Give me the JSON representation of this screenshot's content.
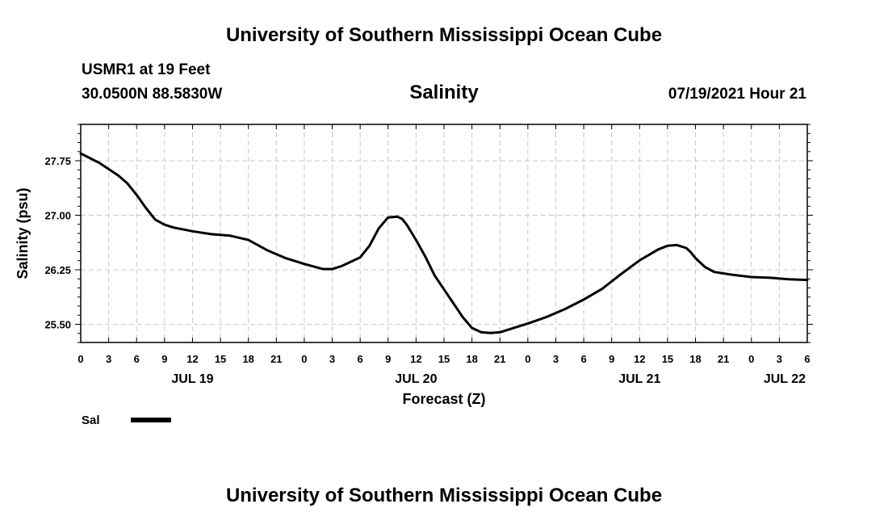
{
  "header": {
    "title": "University of Southern Mississippi Ocean Cube",
    "station": "USMR1 at 19 Feet",
    "coords": "30.0500N  88.5830W",
    "chart_title": "Salinity",
    "datetime": "07/19/2021 Hour 21"
  },
  "footer": {
    "title": "University of Southern Mississippi Ocean Cube"
  },
  "chart_data": {
    "type": "line",
    "title": "Salinity",
    "xlabel": "Forecast (Z)",
    "ylabel": "Salinity (psu)",
    "xlim": [
      0,
      78
    ],
    "ylim": [
      25.25,
      28.25
    ],
    "y_ticks": [
      25.5,
      26.25,
      27.0,
      27.75
    ],
    "y_tick_labels": [
      "25.50",
      "26.25",
      "27.00",
      "27.75"
    ],
    "x_ticks": [
      0,
      3,
      6,
      9,
      12,
      15,
      18,
      21,
      24,
      27,
      30,
      33,
      36,
      39,
      42,
      45,
      48,
      51,
      54,
      57,
      60,
      63,
      66,
      69,
      72,
      75,
      78
    ],
    "x_tick_labels": [
      "0",
      "3",
      "6",
      "9",
      "12",
      "15",
      "18",
      "21",
      "0",
      "3",
      "6",
      "9",
      "12",
      "15",
      "18",
      "21",
      "0",
      "3",
      "6",
      "9",
      "12",
      "15",
      "18",
      "21",
      "0",
      "3",
      "6"
    ],
    "date_labels": [
      {
        "hour": 12,
        "label": "JUL 19"
      },
      {
        "hour": 36,
        "label": "JUL 20"
      },
      {
        "hour": 60,
        "label": "JUL 21"
      },
      {
        "hour": 78,
        "label": "JUL 22"
      }
    ],
    "grid": true,
    "series": [
      {
        "name": "Sal",
        "color": "#000000",
        "x": [
          0,
          2,
          4,
          5,
          6,
          7,
          8,
          9,
          10,
          12,
          14,
          16,
          18,
          20,
          22,
          24,
          26,
          27,
          28,
          30,
          31,
          32,
          33,
          34,
          34.5,
          35,
          36,
          37,
          38,
          39,
          40,
          41,
          42,
          43,
          44,
          45,
          46,
          48,
          50,
          52,
          54,
          56,
          58,
          60,
          62,
          63,
          64,
          65,
          65.5,
          66,
          67,
          68,
          69,
          70,
          72,
          74,
          76,
          78
        ],
        "y": [
          27.85,
          27.72,
          27.55,
          27.44,
          27.28,
          27.1,
          26.94,
          26.87,
          26.83,
          26.78,
          26.74,
          26.72,
          26.66,
          26.52,
          26.41,
          26.33,
          26.26,
          26.26,
          26.3,
          26.42,
          26.58,
          26.82,
          26.97,
          26.98,
          26.95,
          26.87,
          26.66,
          26.43,
          26.17,
          25.98,
          25.79,
          25.6,
          25.45,
          25.39,
          25.38,
          25.39,
          25.43,
          25.51,
          25.6,
          25.71,
          25.84,
          25.99,
          26.19,
          26.38,
          26.53,
          26.58,
          26.59,
          26.55,
          26.49,
          26.41,
          26.29,
          26.22,
          26.2,
          26.18,
          26.15,
          26.14,
          26.12,
          26.11
        ]
      }
    ],
    "legend": [
      {
        "label": "Sal",
        "color": "#000000"
      }
    ]
  }
}
